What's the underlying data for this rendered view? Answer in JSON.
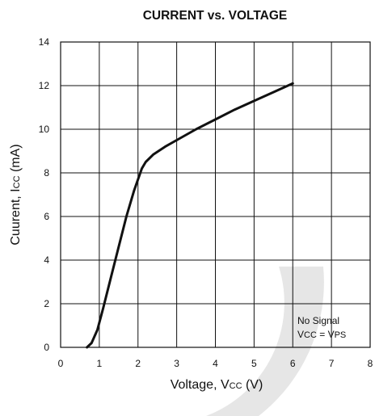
{
  "chart_data": {
    "type": "line",
    "title": "CURRENT vs. VOLTAGE",
    "xlabel": "Voltage, VCC (V)",
    "ylabel": "Cuurent, ICC (mA)",
    "xlim": [
      0,
      8
    ],
    "ylim": [
      0,
      14
    ],
    "x_ticks": [
      "0",
      "1",
      "2",
      "3",
      "4",
      "5",
      "6",
      "7",
      "8"
    ],
    "y_ticks": [
      "0",
      "2",
      "4",
      "6",
      "8",
      "10",
      "12",
      "14"
    ],
    "grid": true,
    "annotation": [
      "No Signal",
      "VCC = VPS"
    ],
    "series": [
      {
        "x": [
          0.68,
          0.8,
          0.95,
          1.1,
          1.3,
          1.5,
          1.7,
          1.9,
          2.1,
          2.2,
          2.4,
          2.7,
          3.0,
          3.5,
          4.0,
          4.5,
          5.0,
          5.5,
          6.0
        ],
        "values": [
          0.0,
          0.2,
          0.8,
          1.8,
          3.2,
          4.6,
          6.0,
          7.2,
          8.2,
          8.5,
          8.85,
          9.2,
          9.5,
          10.0,
          10.45,
          10.9,
          11.3,
          11.7,
          12.1
        ]
      }
    ]
  },
  "colors": {
    "line": "#111111",
    "grid": "#111111",
    "watermark": "#e6e6e6"
  }
}
